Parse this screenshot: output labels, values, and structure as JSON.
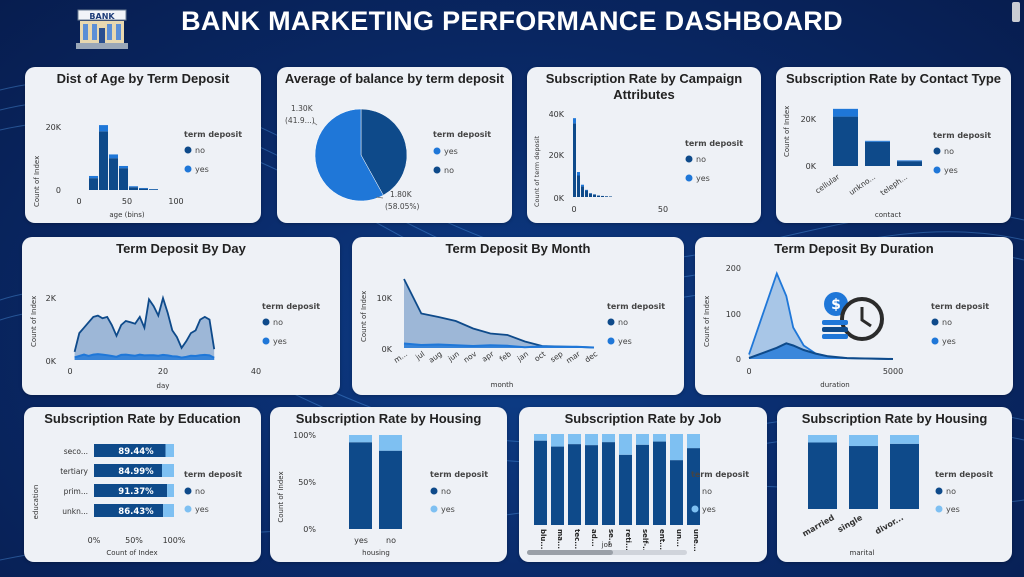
{
  "dashboard": {
    "title": "BANK MARKETING PERFORMANCE DASHBOARD",
    "logo_text": "BANK"
  },
  "colors": {
    "dark": "#0e4a8a",
    "mid": "#1f77d8",
    "light": "#7ec0f2",
    "card": "#eef1f6"
  },
  "legend": {
    "title": "term deposit",
    "no": "no",
    "yes": "yes"
  },
  "age": {
    "title": "Dist of Age by Term Deposit",
    "ylabel": "Count of Index",
    "xlabel": "age (bins)",
    "yticks": [
      "0",
      "20K"
    ],
    "xticks": [
      "0",
      "50",
      "100"
    ]
  },
  "balance": {
    "title": "Average of balance by term deposit",
    "label_no_value": "1.30K",
    "label_no_pct": "(41.9...)",
    "label_yes_value": "1.80K",
    "label_yes_pct": "(58.05%)",
    "legend_first": "yes",
    "legend_second": "no"
  },
  "campaign": {
    "title": "Subscription Rate by Campaign Attributes",
    "ylabel": "Count of term deposit",
    "yticks": [
      "0K",
      "20K",
      "40K"
    ],
    "xticks": [
      "0",
      "50"
    ]
  },
  "contact": {
    "title": "Subscription Rate by Contact Type",
    "ylabel": "Count of Index",
    "xlabel": "contact",
    "yticks": [
      "0K",
      "20K"
    ],
    "categories": [
      "cellular",
      "unkno...",
      "teleph..."
    ]
  },
  "day": {
    "title": "Term Deposit By Day",
    "ylabel": "Count of Index",
    "xlabel": "day",
    "yticks": [
      "0K",
      "2K"
    ],
    "xticks": [
      "0",
      "20",
      "40"
    ]
  },
  "month": {
    "title": "Term Deposit By Month",
    "ylabel": "Count of Index",
    "xlabel": "month",
    "yticks": [
      "0K",
      "10K"
    ],
    "categories": [
      "m...",
      "jul",
      "aug",
      "jun",
      "nov",
      "apr",
      "feb",
      "jan",
      "oct",
      "sep",
      "mar",
      "dec"
    ]
  },
  "duration": {
    "title": "Term Deposit By Duration",
    "ylabel": "Count of Index",
    "xlabel": "duration",
    "yticks": [
      "0",
      "100",
      "200"
    ],
    "xticks": [
      "0",
      "5000"
    ]
  },
  "education": {
    "title": "Subscription Rate by Education",
    "ylabel": "education",
    "xlabel": "Count of Index",
    "xticks": [
      "0%",
      "50%",
      "100%"
    ],
    "categories": [
      "seco...",
      "tertiary",
      "prim...",
      "unkn..."
    ],
    "labels": [
      "89.44%",
      "84.99%",
      "91.37%",
      "86.43%"
    ]
  },
  "housing": {
    "title": "Subscription Rate by Housing",
    "ylabel": "Count of Index",
    "xlabel": "housing",
    "yticks": [
      "0%",
      "50%",
      "100%"
    ],
    "categories": [
      "yes",
      "no"
    ]
  },
  "job": {
    "title": "Subscription Rate by Job",
    "xlabel": "job",
    "categories": [
      "blu...",
      "ma...",
      "tec...",
      "ad...",
      "se...",
      "reti...",
      "self-...",
      "ent...",
      "un...",
      "une..."
    ]
  },
  "marital": {
    "title": "Subscription Rate by Housing",
    "xlabel": "marital",
    "categories": [
      "married",
      "single",
      "divor..."
    ]
  },
  "chart_data": [
    {
      "type": "bar",
      "title": "Dist of Age by Term Deposit",
      "xlabel": "age (bins)",
      "ylabel": "Count of Index",
      "categories": [
        "20",
        "30",
        "40",
        "50",
        "60",
        "70",
        "80"
      ],
      "series": [
        {
          "name": "no",
          "values": [
            3800,
            18800,
            10200,
            7000,
            900,
            450,
            200
          ]
        },
        {
          "name": "yes",
          "values": [
            700,
            2000,
            1200,
            700,
            300,
            200,
            100
          ]
        }
      ],
      "ylim": [
        0,
        25000
      ]
    },
    {
      "type": "pie",
      "title": "Average of balance by term deposit",
      "labels": [
        "no",
        "yes"
      ],
      "values": [
        1300,
        1800
      ],
      "percent": [
        41.95,
        58.05
      ]
    },
    {
      "type": "bar",
      "title": "Subscription Rate by Campaign Attributes",
      "ylabel": "Count of term deposit",
      "x": [
        1,
        2,
        3,
        4,
        5,
        6,
        7,
        8,
        9,
        10
      ],
      "series": [
        {
          "name": "no",
          "values": [
            36000,
            10500,
            5200,
            3200,
            1700,
            1200,
            700,
            500,
            350,
            250
          ]
        },
        {
          "name": "yes",
          "values": [
            2500,
            1700,
            800,
            300,
            150,
            100,
            50,
            30,
            20,
            10
          ]
        }
      ],
      "ylim": [
        0,
        42000
      ]
    },
    {
      "type": "bar",
      "title": "Subscription Rate by Contact Type",
      "xlabel": "contact",
      "ylabel": "Count of Index",
      "categories": [
        "cellular",
        "unkno...",
        "teleph..."
      ],
      "series": [
        {
          "name": "no",
          "values": [
            25500,
            12500,
            2500
          ]
        },
        {
          "name": "yes",
          "values": [
            4000,
            500,
            400
          ]
        }
      ],
      "ylim": [
        0,
        32000
      ]
    },
    {
      "type": "area",
      "title": "Term Deposit By Day",
      "xlabel": "day",
      "ylabel": "Count of Index",
      "x": [
        1,
        2,
        3,
        4,
        5,
        6,
        7,
        8,
        9,
        10,
        11,
        12,
        13,
        14,
        15,
        16,
        17,
        18,
        19,
        20,
        21,
        22,
        23,
        24,
        25,
        26,
        27,
        28,
        29,
        30,
        31
      ],
      "series": [
        {
          "name": "no",
          "values": [
            300,
            1000,
            1200,
            1400,
            1600,
            1650,
            1550,
            1600,
            1300,
            900,
            1300,
            1450,
            1400,
            1350,
            1600,
            1200,
            2250,
            2000,
            1650,
            2300,
            1750,
            1100,
            850,
            450,
            700,
            1000,
            1100,
            1500,
            1600,
            1500,
            400
          ]
        },
        {
          "name": "yes",
          "values": [
            100,
            150,
            200,
            150,
            200,
            220,
            200,
            180,
            150,
            120,
            190,
            200,
            180,
            160,
            200,
            170,
            180,
            180,
            160,
            190,
            170,
            140,
            130,
            90,
            120,
            160,
            150,
            180,
            190,
            170,
            80
          ]
        }
      ],
      "ylim": [
        0,
        2600
      ]
    },
    {
      "type": "area",
      "title": "Term Deposit By Month",
      "xlabel": "month",
      "ylabel": "Count of Index",
      "categories": [
        "m...",
        "jul",
        "aug",
        "jun",
        "nov",
        "apr",
        "feb",
        "jan",
        "oct",
        "sep",
        "mar",
        "dec"
      ],
      "series": [
        {
          "name": "no",
          "values": [
            13800,
            6900,
            6200,
            5400,
            3900,
            2900,
            2600,
            1300,
            400,
            300,
            200,
            100
          ]
        },
        {
          "name": "yes",
          "values": [
            900,
            600,
            700,
            550,
            400,
            550,
            450,
            140,
            320,
            260,
            250,
            100
          ]
        }
      ],
      "ylim": [
        0,
        15000
      ]
    },
    {
      "type": "area",
      "title": "Term Deposit By Duration",
      "xlabel": "duration",
      "ylabel": "Count of Index",
      "x": [
        0,
        100,
        200,
        300,
        500,
        800,
        1200,
        2000,
        3000,
        5000
      ],
      "series": [
        {
          "name": "no",
          "values": [
            10,
            190,
            140,
            70,
            30,
            12,
            5,
            2,
            1,
            0
          ]
        },
        {
          "name": "yes",
          "values": [
            2,
            25,
            35,
            30,
            20,
            12,
            6,
            2,
            1,
            0
          ]
        }
      ],
      "ylim": [
        0,
        200
      ]
    },
    {
      "type": "bar",
      "title": "Subscription Rate by Education",
      "xlabel": "Count of Index",
      "ylabel": "education",
      "categories": [
        "seco...",
        "tertiary",
        "prim...",
        "unkn..."
      ],
      "series": [
        {
          "name": "no",
          "values": [
            89.44,
            84.99,
            91.37,
            86.43
          ]
        },
        {
          "name": "yes",
          "values": [
            10.56,
            15.01,
            8.63,
            13.57
          ]
        }
      ],
      "xlim": [
        0,
        100
      ]
    },
    {
      "type": "bar",
      "title": "Subscription Rate by Housing",
      "xlabel": "housing",
      "ylabel": "Count of Index",
      "categories": [
        "yes",
        "no"
      ],
      "series": [
        {
          "name": "no",
          "values": [
            92.3,
            83.3
          ]
        },
        {
          "name": "yes",
          "values": [
            7.7,
            16.7
          ]
        }
      ],
      "ylim": [
        0,
        100
      ]
    },
    {
      "type": "bar",
      "title": "Subscription Rate by Job",
      "xlabel": "job",
      "categories": [
        "blu...",
        "ma...",
        "tec...",
        "ad...",
        "se...",
        "reti...",
        "self-...",
        "ent...",
        "un...",
        "une..."
      ],
      "series": [
        {
          "name": "no",
          "values": [
            92.7,
            86.2,
            88.9,
            87.8,
            91.1,
            77.2,
            88.2,
            91.7,
            71.3,
            84.5
          ]
        },
        {
          "name": "yes",
          "values": [
            7.3,
            13.8,
            11.1,
            12.2,
            8.9,
            22.8,
            11.8,
            8.3,
            28.7,
            15.5
          ]
        }
      ],
      "ylim": [
        0,
        100
      ]
    },
    {
      "type": "bar",
      "title": "Subscription Rate by Housing",
      "xlabel": "marital",
      "categories": [
        "married",
        "single",
        "divor..."
      ],
      "series": [
        {
          "name": "no",
          "values": [
            89.9,
            85.1,
            88.1
          ]
        },
        {
          "name": "yes",
          "values": [
            10.1,
            14.9,
            11.9
          ]
        }
      ],
      "ylim": [
        0,
        100
      ]
    }
  ]
}
